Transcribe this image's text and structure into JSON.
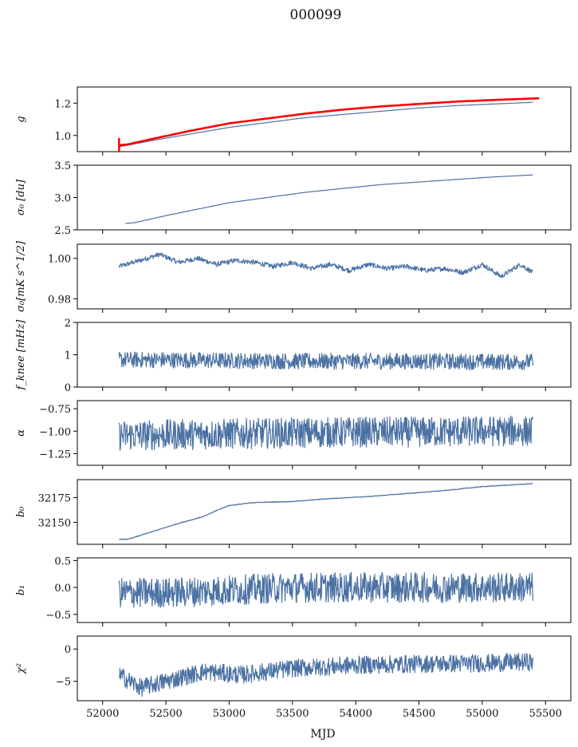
{
  "figure": {
    "title": "000099",
    "xlabel": "MJD"
  },
  "chart_data": [
    {
      "type": "line",
      "ylabel": "g",
      "ylim": [
        0.9,
        1.3
      ],
      "yticks": [
        1.0,
        1.2
      ],
      "ytick_labels": [
        "1.0",
        "1.2"
      ],
      "series": [
        {
          "color": "#4c72a4",
          "x": [
            52130,
            52200,
            52400,
            52700,
            53000,
            53300,
            53600,
            53900,
            54200,
            54500,
            54800,
            55100,
            55400
          ],
          "y": [
            0.93,
            0.94,
            0.97,
            1.01,
            1.05,
            1.08,
            1.11,
            1.13,
            1.15,
            1.17,
            1.185,
            1.195,
            1.205
          ]
        },
        {
          "color": "#ff0000",
          "x": [
            52130,
            52200,
            52400,
            52700,
            53000,
            53300,
            53600,
            53900,
            54200,
            54500,
            54800,
            55100,
            55450
          ],
          "y": [
            0.94,
            0.945,
            0.98,
            1.03,
            1.075,
            1.105,
            1.135,
            1.16,
            1.18,
            1.195,
            1.21,
            1.22,
            1.23
          ]
        }
      ]
    },
    {
      "type": "line",
      "ylabel": "σ₀ [du]",
      "ylim": [
        2.5,
        3.5
      ],
      "yticks": [
        2.5,
        3.0,
        3.5
      ],
      "ytick_labels": [
        "2.5",
        "3.0",
        "3.5"
      ],
      "series": [
        {
          "color": "#4c72a4",
          "x": [
            52180,
            52250,
            52500,
            52800,
            53000,
            53300,
            53600,
            53900,
            54200,
            54500,
            54800,
            55100,
            55400
          ],
          "y": [
            2.6,
            2.61,
            2.72,
            2.84,
            2.92,
            3.0,
            3.08,
            3.14,
            3.2,
            3.24,
            3.28,
            3.32,
            3.35
          ]
        }
      ]
    },
    {
      "type": "line",
      "ylabel": "σ₀[mK s^1/2]",
      "ylim": [
        0.975,
        1.007
      ],
      "yticks": [
        0.98,
        1.0
      ],
      "ytick_labels": [
        "0.98",
        "1.00"
      ],
      "series": [
        {
          "color": "#4c72a4",
          "x": [
            52130,
            52300,
            52450,
            52600,
            52750,
            52900,
            53050,
            53200,
            53350,
            53500,
            53650,
            53800,
            53950,
            54100,
            54250,
            54400,
            54550,
            54700,
            54850,
            55000,
            55150,
            55300,
            55400
          ],
          "y": [
            0.996,
            0.999,
            1.002,
            0.998,
            1.0,
            0.997,
            0.999,
            0.998,
            0.996,
            0.998,
            0.995,
            0.997,
            0.994,
            0.997,
            0.995,
            0.996,
            0.994,
            0.995,
            0.993,
            0.997,
            0.991,
            0.997,
            0.993
          ]
        }
      ]
    },
    {
      "type": "line",
      "ylabel": "f_knee [mHz]",
      "ylim": [
        0,
        2
      ],
      "yticks": [
        0,
        1,
        2
      ],
      "ytick_labels": [
        "0",
        "1",
        "2"
      ],
      "series": [
        {
          "color": "#4c72a4",
          "x": [
            52130,
            52500,
            53000,
            53500,
            54000,
            54500,
            55000,
            55400
          ],
          "y": [
            0.85,
            0.84,
            0.82,
            0.8,
            0.8,
            0.8,
            0.78,
            0.78
          ]
        }
      ]
    },
    {
      "type": "line",
      "ylabel": "α",
      "ylim": [
        -1.38,
        -0.66
      ],
      "yticks": [
        -1.25,
        -1.0,
        -0.75
      ],
      "ytick_labels": [
        "−1.25",
        "−1.00",
        "−0.75"
      ],
      "series": [
        {
          "color": "#4c72a4",
          "x": [
            52130,
            52500,
            53000,
            53500,
            54000,
            54500,
            55000,
            55400
          ],
          "y": [
            -1.05,
            -1.04,
            -1.03,
            -1.02,
            -1.01,
            -1.01,
            -1.0,
            -1.0
          ]
        }
      ]
    },
    {
      "type": "line",
      "ylabel": "b₀",
      "ylim": [
        32128,
        32193
      ],
      "yticks": [
        32150,
        32175
      ],
      "ytick_labels": [
        "32150",
        "32175"
      ],
      "series": [
        {
          "color": "#4c72a4",
          "x": [
            52130,
            52200,
            52400,
            52600,
            52800,
            52900,
            53000,
            53200,
            53500,
            53800,
            54100,
            54400,
            54700,
            55000,
            55400
          ],
          "y": [
            32133,
            32133,
            32141,
            32149,
            32156,
            32162,
            32167,
            32170,
            32171,
            32174,
            32176,
            32179,
            32182,
            32186,
            32189
          ]
        }
      ]
    },
    {
      "type": "line",
      "ylabel": "b₁",
      "ylim": [
        -0.65,
        0.55
      ],
      "yticks": [
        -0.5,
        0.0,
        0.5
      ],
      "ytick_labels": [
        "−0.5",
        "0.0",
        "0.5"
      ],
      "series": [
        {
          "color": "#4c72a4",
          "x": [
            52130,
            52500,
            53000,
            53500,
            54000,
            54500,
            55000,
            55400
          ],
          "y": [
            -0.1,
            -0.1,
            -0.05,
            0.0,
            0.0,
            0.0,
            0.0,
            0.0
          ]
        }
      ]
    },
    {
      "type": "line",
      "ylabel": "χ²",
      "ylim": [
        -8,
        2
      ],
      "yticks": [
        -5,
        0
      ],
      "ytick_labels": [
        "−5",
        "0"
      ],
      "series": [
        {
          "color": "#4c72a4",
          "x": [
            52130,
            52300,
            52500,
            52800,
            53100,
            53500,
            54000,
            54500,
            55000,
            55400
          ],
          "y": [
            -4.0,
            -6.0,
            -5.0,
            -3.5,
            -4.0,
            -3.0,
            -2.5,
            -2.3,
            -2.2,
            -2.0
          ]
        }
      ]
    }
  ],
  "x_axis": {
    "xlim": [
      51800,
      55700
    ],
    "ticks": [
      52000,
      52500,
      53000,
      53500,
      54000,
      54500,
      55000,
      55500
    ],
    "tick_labels": [
      "52000",
      "52500",
      "53000",
      "53500",
      "54000",
      "54500",
      "55000",
      "55500"
    ]
  }
}
